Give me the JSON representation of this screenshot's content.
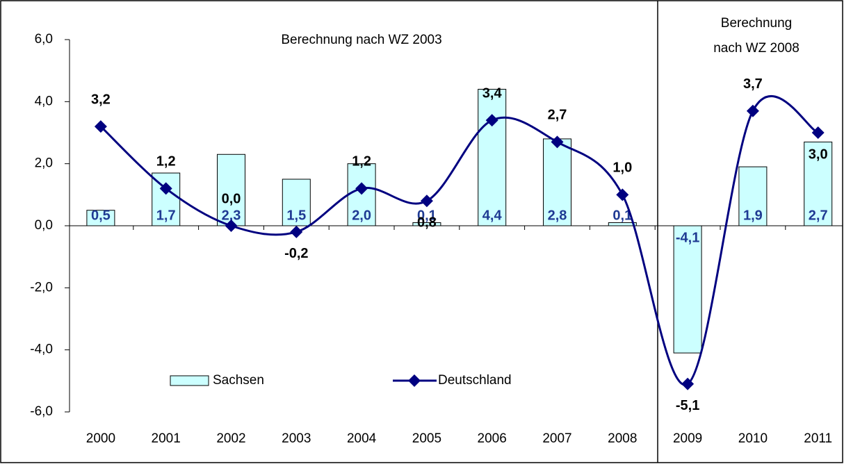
{
  "chart_data": {
    "type": "bar_line",
    "categories": [
      "2000",
      "2001",
      "2002",
      "2003",
      "2004",
      "2005",
      "2006",
      "2007",
      "2008",
      "2009",
      "2010",
      "2011"
    ],
    "series": [
      {
        "name": "Sachsen",
        "type": "bar",
        "color": "#ccffff",
        "values": [
          0.5,
          1.7,
          2.3,
          1.5,
          2.0,
          0.1,
          4.4,
          2.8,
          0.1,
          -4.1,
          1.9,
          2.7
        ],
        "value_labels": [
          "0,5",
          "1,7",
          "2,3",
          "1,5",
          "2,0",
          "0,1",
          "4,4",
          "2,8",
          "0,1",
          "-4,1",
          "1,9",
          "2,7"
        ]
      },
      {
        "name": "Deutschland",
        "type": "line",
        "color": "#000080",
        "values": [
          3.2,
          1.2,
          0.0,
          -0.2,
          1.2,
          0.8,
          3.4,
          2.7,
          1.0,
          -5.1,
          3.7,
          3.0
        ],
        "value_labels": [
          "3,2",
          "1,2",
          "0,0",
          "-0,2",
          "1,2",
          "0,8",
          "3,4",
          "2,7",
          "1,0",
          "-5,1",
          "3,7",
          "3,0"
        ]
      }
    ],
    "ylim": [
      -6,
      6
    ],
    "yticks": [
      {
        "value": -6,
        "label": "-6,0"
      },
      {
        "value": -4,
        "label": "-4,0"
      },
      {
        "value": -2,
        "label": "-2,0"
      },
      {
        "value": 0,
        "label": "0,0"
      },
      {
        "value": 2,
        "label": "2,0"
      },
      {
        "value": 4,
        "label": "4,0"
      },
      {
        "value": 6,
        "label": "6,0"
      }
    ],
    "annotations": [
      {
        "lines": [
          "Berechnung nach WZ 2003"
        ]
      },
      {
        "lines": [
          "Berechnung",
          "nach WZ 2008"
        ]
      }
    ],
    "legend": "lower center"
  }
}
